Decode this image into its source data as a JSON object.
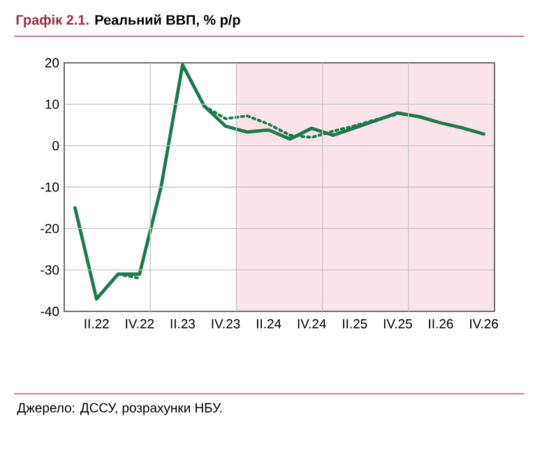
{
  "chart_data": {
    "type": "line",
    "title": "Графік 2.1.",
    "subtitle": "Реальний ВВП, % р/р",
    "categories": [
      null,
      "II.22",
      null,
      "IV.22",
      null,
      "II.23",
      null,
      "IV.23",
      null,
      "II.24",
      null,
      "IV.24",
      null,
      "II.25",
      null,
      "IV.25",
      null,
      "II.26",
      null,
      "IV.26"
    ],
    "series": [
      {
        "color": "#1b7a47",
        "line_style": "solid",
        "values": [
          -15,
          -37,
          -31,
          -31,
          -10,
          19.5,
          9.6,
          4.7,
          3.3,
          3.8,
          1.6,
          4.2,
          2.5,
          4.3,
          6.1,
          7.9,
          7,
          5.5,
          4.3,
          2.8
        ]
      },
      {
        "color": "#1b7a47",
        "line_style": "dotted",
        "values": [
          null,
          null,
          -31,
          -32,
          null,
          null,
          9.6,
          6.5,
          7.2,
          5.2,
          2.5,
          2.0,
          3.5,
          4.8,
          6.3,
          7.6,
          null,
          null,
          null,
          null
        ]
      }
    ],
    "ylim": [
      -40,
      20
    ],
    "yticks": [
      -40,
      -30,
      -20,
      -10,
      0,
      10,
      20
    ],
    "grid": true,
    "annotations": [
      "Джерело: ДССУ, розрахунки НБУ."
    ]
  }
}
